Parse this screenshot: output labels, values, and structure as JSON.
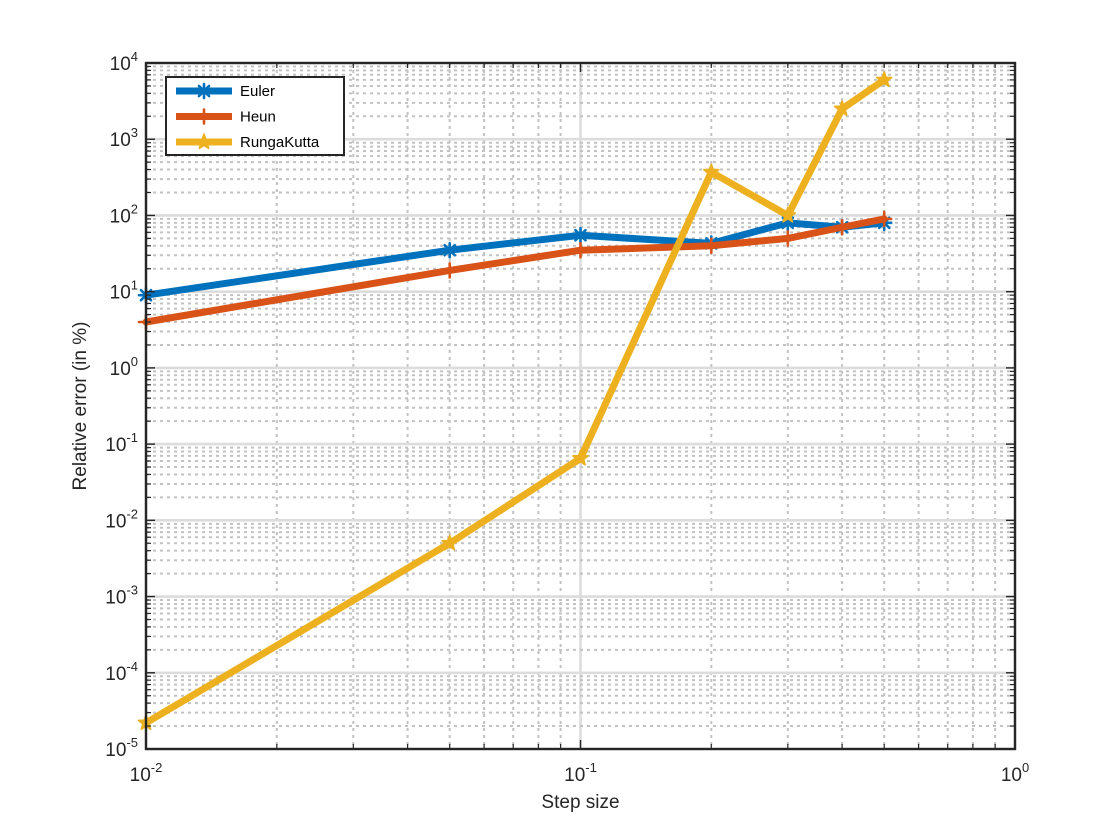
{
  "chart_data": {
    "type": "line",
    "xscale": "log",
    "yscale": "log",
    "xlim": [
      0.01,
      1
    ],
    "ylim": [
      1e-05,
      10000
    ],
    "xlabel": "Step size",
    "ylabel": "Relative error (in %)",
    "grid": "major and minor",
    "legend_position": "top-left",
    "x_ticks": [
      {
        "base": "10",
        "exp": "-2",
        "value": 0.01
      },
      {
        "base": "10",
        "exp": "-1",
        "value": 0.1
      },
      {
        "base": "10",
        "exp": "0",
        "value": 1
      }
    ],
    "y_ticks": [
      {
        "base": "10",
        "exp": "-5",
        "value": 1e-05
      },
      {
        "base": "10",
        "exp": "-4",
        "value": 0.0001
      },
      {
        "base": "10",
        "exp": "-3",
        "value": 0.001
      },
      {
        "base": "10",
        "exp": "-2",
        "value": 0.01
      },
      {
        "base": "10",
        "exp": "-1",
        "value": 0.1
      },
      {
        "base": "10",
        "exp": "0",
        "value": 1
      },
      {
        "base": "10",
        "exp": "1",
        "value": 10
      },
      {
        "base": "10",
        "exp": "2",
        "value": 100
      },
      {
        "base": "10",
        "exp": "3",
        "value": 1000
      },
      {
        "base": "10",
        "exp": "4",
        "value": 10000
      }
    ],
    "x": [
      0.01,
      0.05,
      0.1,
      0.2,
      0.3,
      0.4,
      0.5
    ],
    "series": [
      {
        "name": "Euler",
        "color": "#0072BD",
        "marker": "asterisk",
        "values": [
          9,
          35,
          55,
          43,
          80,
          70,
          80
        ]
      },
      {
        "name": "Heun",
        "color": "#D95319",
        "marker": "plus",
        "values": [
          4,
          19,
          35,
          40,
          50,
          70,
          90
        ]
      },
      {
        "name": "RungaKutta",
        "color": "#EDB120",
        "marker": "star",
        "values": [
          2.2e-05,
          0.005,
          0.065,
          370,
          100,
          2500,
          6000
        ]
      }
    ]
  }
}
